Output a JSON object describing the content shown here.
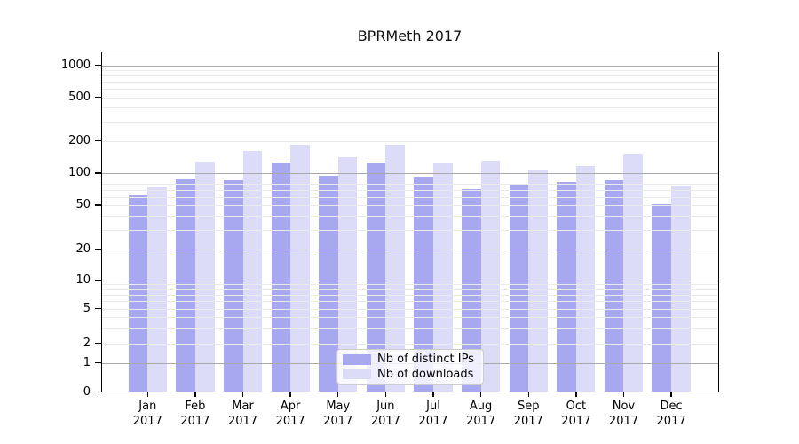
{
  "title": "BPRMeth 2017",
  "chart_data": {
    "type": "bar",
    "title": "BPRMeth 2017",
    "y_scale": "symlog",
    "grid": true,
    "legend_position": "lower center",
    "ylim": [
      0,
      1400
    ],
    "y_ticks": [
      0,
      1,
      2,
      5,
      10,
      20,
      50,
      100,
      200,
      500,
      1000
    ],
    "x_labels": [
      {
        "month": "Jan",
        "year": "2017"
      },
      {
        "month": "Feb",
        "year": "2017"
      },
      {
        "month": "Mar",
        "year": "2017"
      },
      {
        "month": "Apr",
        "year": "2017"
      },
      {
        "month": "May",
        "year": "2017"
      },
      {
        "month": "Jun",
        "year": "2017"
      },
      {
        "month": "Jul",
        "year": "2017"
      },
      {
        "month": "Aug",
        "year": "2017"
      },
      {
        "month": "Sep",
        "year": "2017"
      },
      {
        "month": "Oct",
        "year": "2017"
      },
      {
        "month": "Nov",
        "year": "2017"
      },
      {
        "month": "Dec",
        "year": "2017"
      }
    ],
    "series": [
      {
        "name": "Nb of distinct IPs",
        "color": "#a8a8f0",
        "values": [
          62,
          87,
          85,
          126,
          95,
          126,
          92,
          71,
          78,
          82,
          85,
          51
        ]
      },
      {
        "name": "Nb of downloads",
        "color": "#dcdcf8",
        "values": [
          74,
          128,
          160,
          185,
          140,
          185,
          124,
          130,
          105,
          117,
          152,
          76
        ]
      }
    ]
  },
  "colors": {
    "major_grid": "#a9a9a9",
    "minor_grid": "#eaeaea",
    "axis": "#000000",
    "background": "#ffffff"
  }
}
